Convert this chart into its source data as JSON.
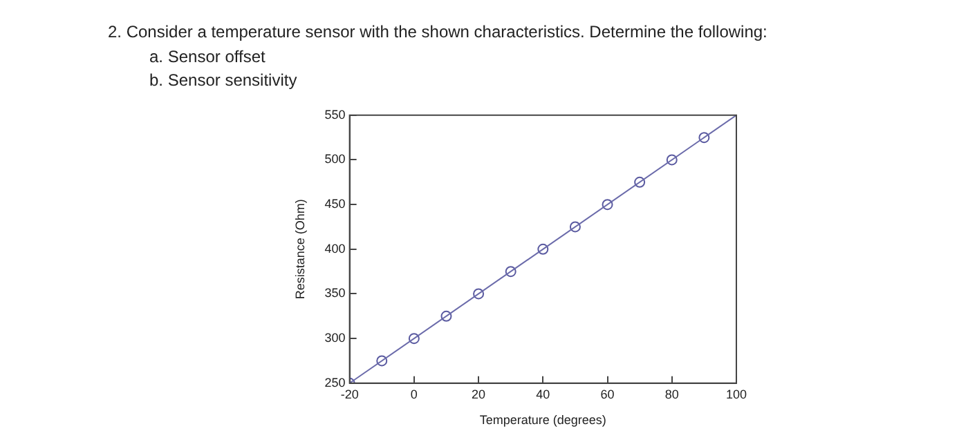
{
  "chart_data": {
    "type": "scatter",
    "title": "2. Consider a temperature sensor with the shown characteristics. Determine the following:",
    "annotations": [
      "a. Sensor offset",
      "b. Sensor sensitivity"
    ],
    "xlabel": "Temperature (degrees)",
    "ylabel": "Resistance (Ohm)",
    "series": [
      {
        "type": "line",
        "color": "#6a6aaa",
        "x": [
          -20,
          100
        ],
        "values": [
          250,
          550
        ],
        "marker": "none"
      },
      {
        "color": "#5a5aa0",
        "x": [
          -20,
          -10,
          0,
          10,
          20,
          30,
          40,
          50,
          60,
          70,
          80,
          90
        ],
        "values": [
          250,
          275,
          300,
          325,
          350,
          375,
          400,
          425,
          450,
          475,
          500,
          525
        ],
        "marker": "circle"
      }
    ],
    "xlim": [
      -20,
      100
    ],
    "xticks": [
      -20,
      0,
      20,
      40,
      60,
      80,
      100
    ],
    "ylim": [
      250,
      550
    ],
    "yticks": [
      250,
      300,
      350,
      400,
      450,
      500,
      550
    ],
    "grid": false,
    "legend": false
  }
}
